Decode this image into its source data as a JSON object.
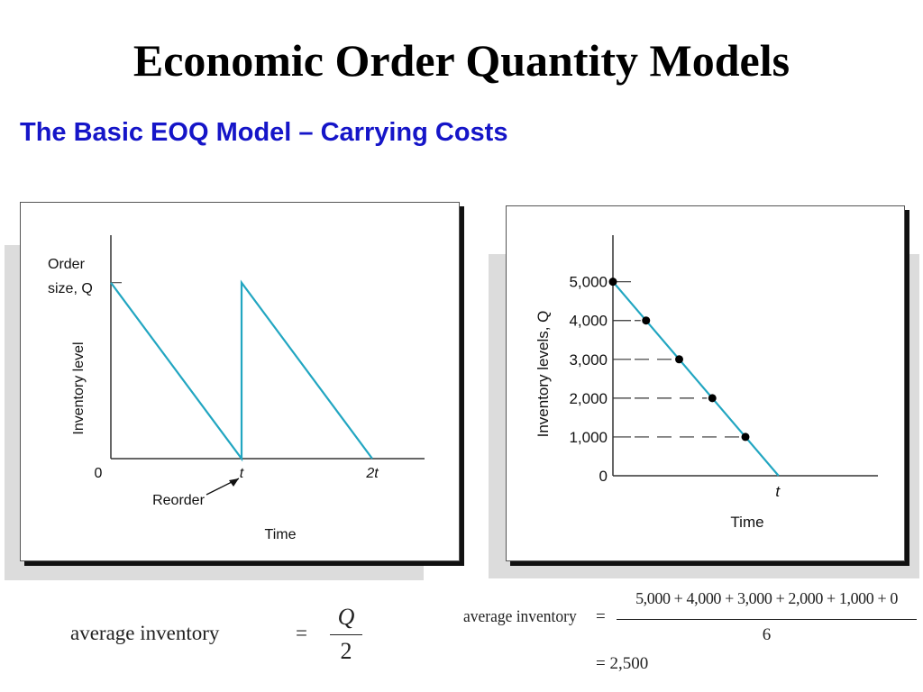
{
  "title": "Economic Order Quantity Models",
  "subtitle": "The Basic EOQ Model – Carrying Costs",
  "chart_data": [
    {
      "type": "line",
      "ylabel": "Inventory level",
      "xlabel": "Time",
      "y_top_label_line1": "Order",
      "y_top_label_line2": "size, Q",
      "x_tick_labels": [
        "0",
        "t",
        "2t"
      ],
      "annotation": "Reorder",
      "x": [
        0,
        1,
        1,
        2
      ],
      "y": [
        1,
        0,
        1,
        0
      ],
      "xlim": [
        0,
        2.4
      ],
      "ylim": [
        0,
        1.27
      ],
      "grid": false
    },
    {
      "type": "line",
      "ylabel": "Inventory levels, Q",
      "xlabel": "Time",
      "x_tick_labels": [
        "t"
      ],
      "y_tick_labels": [
        "0",
        "1,000",
        "2,000",
        "3,000",
        "4,000",
        "5,000"
      ],
      "line": {
        "x": [
          0,
          1
        ],
        "y": [
          5000,
          0
        ]
      },
      "points": {
        "x": [
          0,
          0.2,
          0.4,
          0.6,
          0.8
        ],
        "y": [
          5000,
          4000,
          3000,
          2000,
          1000
        ]
      },
      "xlim": [
        0,
        1.6
      ],
      "ylim": [
        0,
        6200
      ],
      "grid": false
    }
  ],
  "formula_left": {
    "lhs": "average inventory",
    "equals": "=",
    "numerator": "Q",
    "denominator": "2"
  },
  "formula_right": {
    "lhs": "average inventory",
    "equals": "=",
    "numerator": "5,000 + 4,000 + 3,000 + 2,000 + 1,000 + 0",
    "denominator": "6",
    "result": "= 2,500"
  },
  "colors": {
    "line": "#22a6c1",
    "title": "#000000",
    "subtitle": "#1515c8"
  }
}
